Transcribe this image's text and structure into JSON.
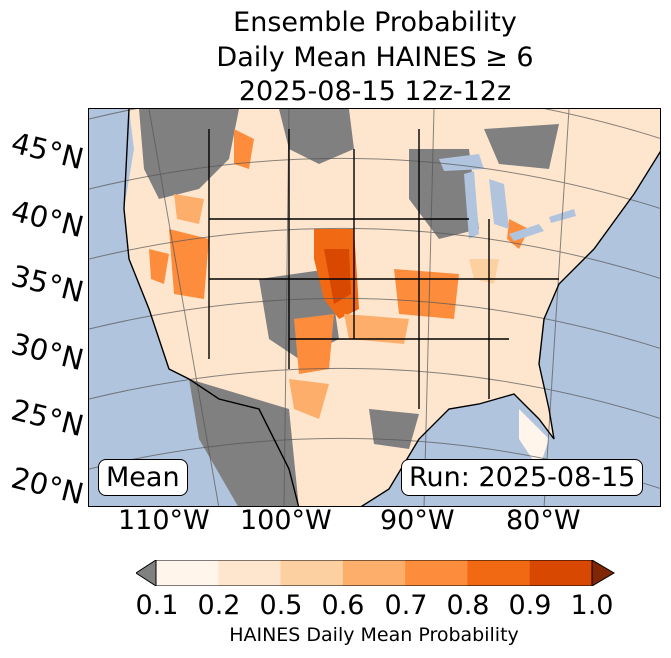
{
  "title": {
    "line1": "Ensemble Probability",
    "line2": "Daily Mean HAINES ≥ 6",
    "line3": "2025-08-15 12z-12z"
  },
  "map": {
    "latitude_labels": [
      "45°N",
      "40°N",
      "35°N",
      "30°N",
      "25°N",
      "20°N"
    ],
    "longitude_labels": [
      "110°W",
      "100°W",
      "90°W",
      "80°W"
    ],
    "left_box": "Mean",
    "right_box": "Run: 2025-08-15",
    "colors": {
      "ocean": "#b0c4de",
      "land_below_threshold": "#808080",
      "lakes": "#b0c4de"
    }
  },
  "colorbar": {
    "ticks": [
      "0.1",
      "0.2",
      "0.5",
      "0.6",
      "0.7",
      "0.8",
      "0.9",
      "1.0"
    ],
    "colors": [
      "#fff5eb",
      "#fee6ce",
      "#fdd0a2",
      "#fdae6b",
      "#fd8d3c",
      "#f16913",
      "#d94801",
      "#a63603"
    ],
    "under_color": "#808080",
    "label": "HAINES Daily Mean Probability"
  }
}
